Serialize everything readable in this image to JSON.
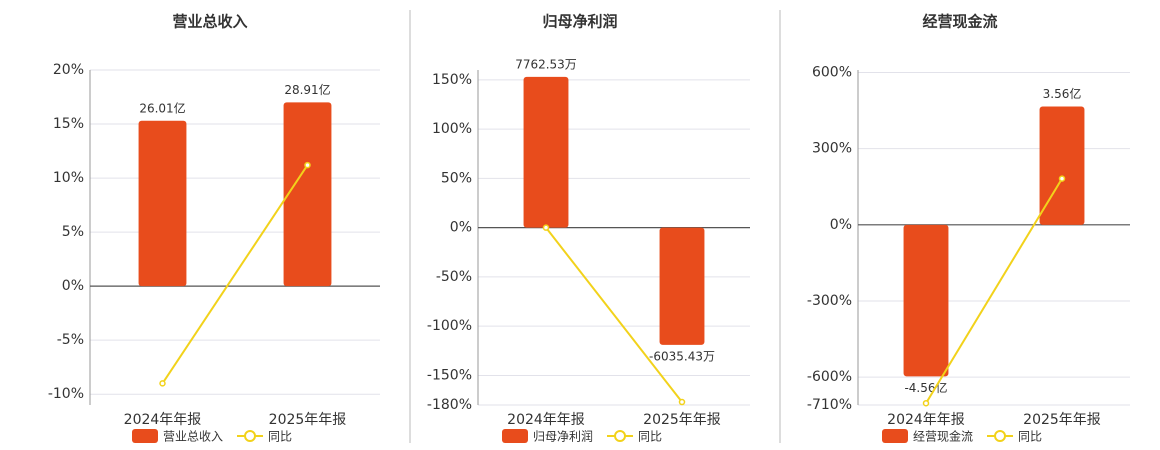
{
  "chart_data": [
    {
      "type": "combo",
      "title": "营业总收入",
      "categories": [
        "2024年年报",
        "2025年年报"
      ],
      "series": [
        {
          "name": "营业总收入",
          "color": "#e84c1c",
          "values": [
            26.01,
            28.91
          ],
          "value_labels": [
            "26.01亿",
            "28.91亿"
          ],
          "axis": "y2"
        },
        {
          "name": "同比",
          "color": "#f2d21b",
          "values": [
            -9.0,
            11.2
          ]
        }
      ],
      "ylim": [
        -11,
        20
      ],
      "y2lim": [
        -18.7,
        34
      ],
      "yticks": [
        {
          "value": -10,
          "label": "-10%"
        },
        {
          "value": -5,
          "label": "-5%"
        },
        {
          "value": 0,
          "label": "0%"
        },
        {
          "value": 5,
          "label": "5%"
        },
        {
          "value": 10,
          "label": "10%"
        },
        {
          "value": 15,
          "label": "15%"
        },
        {
          "value": 20,
          "label": "20%"
        }
      ],
      "grid": true
    },
    {
      "type": "combo",
      "title": "归母净利润",
      "categories": [
        "2024年年报",
        "2025年年报"
      ],
      "series": [
        {
          "name": "归母净利润",
          "color": "#e84c1c",
          "values": [
            7762.53,
            -6035.43
          ],
          "value_labels": [
            "7762.53万",
            "-6035.43万"
          ],
          "axis": "y2"
        },
        {
          "name": "同比",
          "color": "#f2d21b",
          "values": [
            0,
            -177
          ]
        }
      ],
      "ylim": [
        -180,
        160
      ],
      "y2lim": [
        -9130,
        8115
      ],
      "yticks": [
        {
          "value": -180,
          "label": "-180%"
        },
        {
          "value": -150,
          "label": "-150%"
        },
        {
          "value": -100,
          "label": "-100%"
        },
        {
          "value": -50,
          "label": "-50%"
        },
        {
          "value": 0,
          "label": "0%"
        },
        {
          "value": 50,
          "label": "50%"
        },
        {
          "value": 100,
          "label": "100%"
        },
        {
          "value": 150,
          "label": "150%"
        }
      ],
      "grid": true
    },
    {
      "type": "combo",
      "title": "经营现金流",
      "categories": [
        "2024年年报",
        "2025年年报"
      ],
      "series": [
        {
          "name": "经营现金流",
          "color": "#e84c1c",
          "values": [
            -4.56,
            3.56
          ],
          "value_labels": [
            "-4.56亿",
            "3.56亿"
          ],
          "axis": "y2"
        },
        {
          "name": "同比",
          "color": "#f2d21b",
          "values": [
            -703,
            182
          ]
        }
      ],
      "ylim": [
        -710,
        610
      ],
      "y2lim": [
        -5.42,
        4.66
      ],
      "yticks": [
        {
          "value": -710,
          "label": "-710%"
        },
        {
          "value": -600,
          "label": "-600%"
        },
        {
          "value": -300,
          "label": "-300%"
        },
        {
          "value": 0,
          "label": "0%"
        },
        {
          "value": 300,
          "label": "300%"
        },
        {
          "value": 600,
          "label": "600%"
        }
      ],
      "grid": true
    }
  ]
}
